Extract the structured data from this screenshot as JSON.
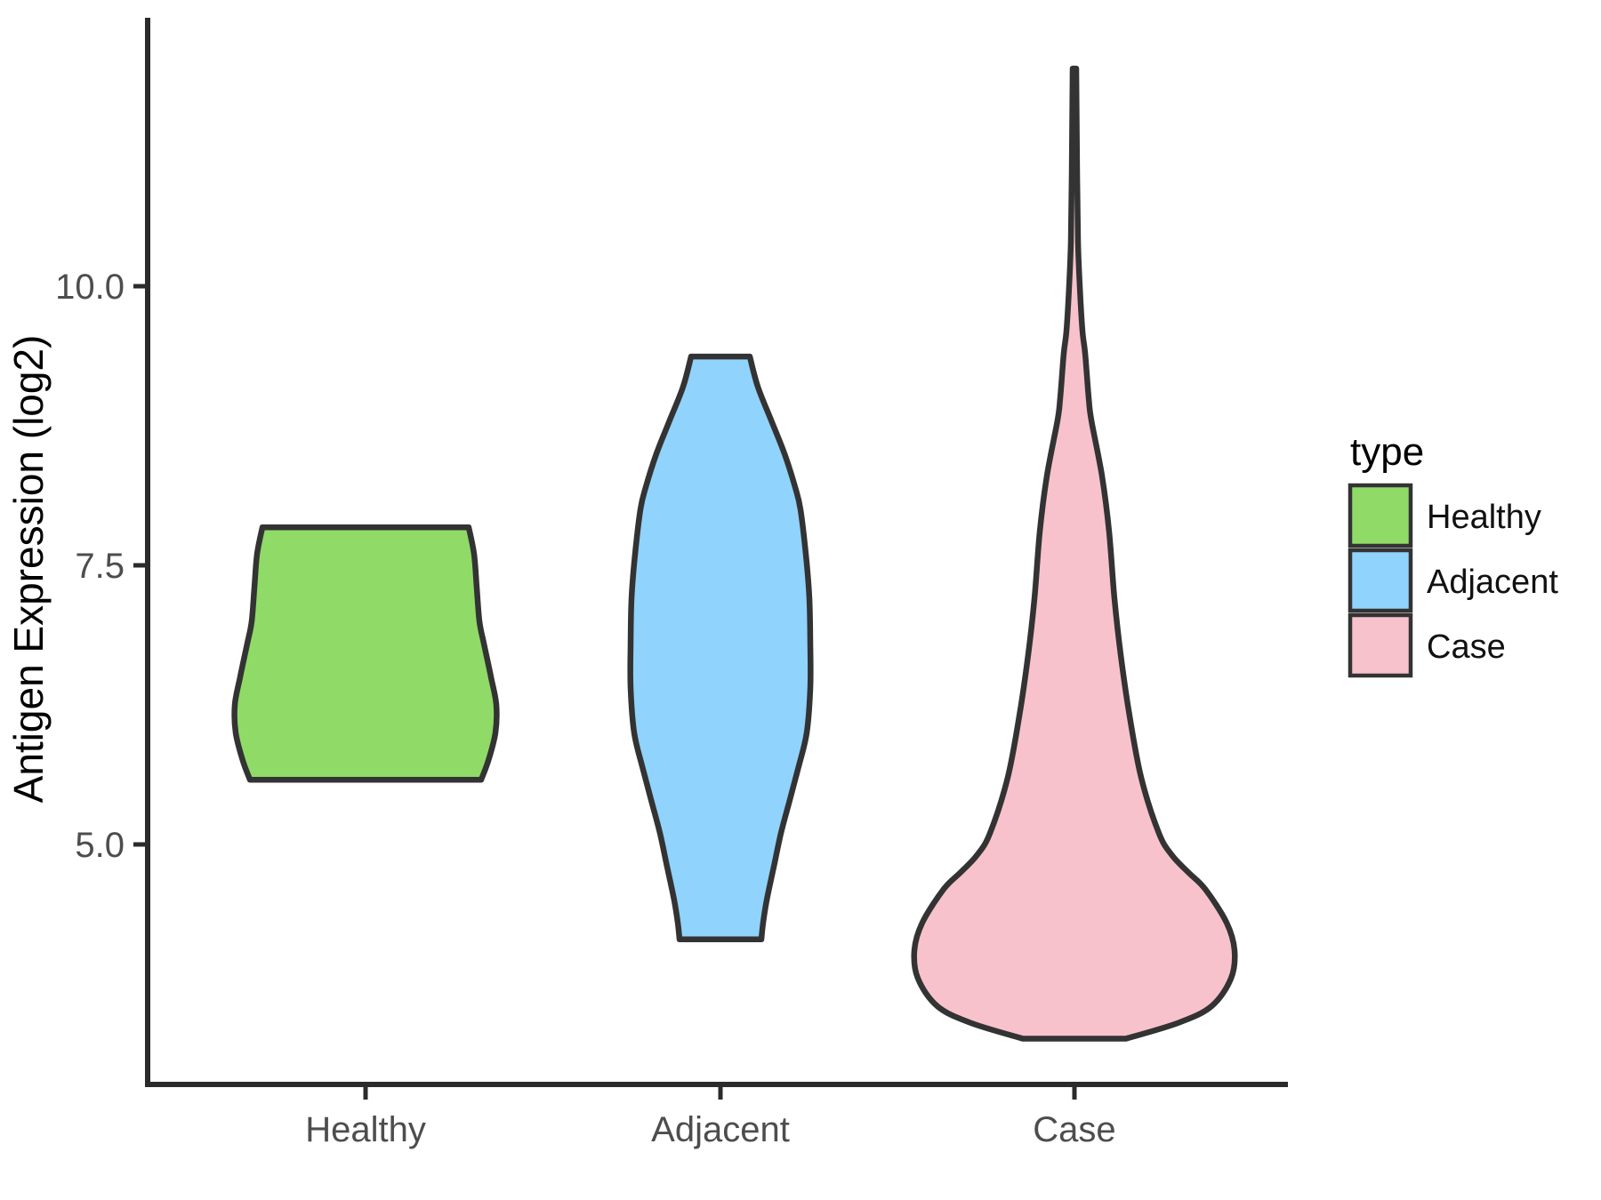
{
  "figure": {
    "background": "#ffffff",
    "outline_color": "#333333",
    "axis_color": "#2b2b2b",
    "tick_text_color": "#4d4d4d"
  },
  "y_axis": {
    "title": "Antigen Expression (log2)",
    "ticks": [
      {
        "label": "10.0",
        "value": 10.0
      },
      {
        "label": "7.5",
        "value": 7.5
      },
      {
        "label": "5.0",
        "value": 5.0
      }
    ]
  },
  "x_axis": {
    "categories": [
      "Healthy",
      "Adjacent",
      "Case"
    ]
  },
  "legend": {
    "title": "type",
    "items": [
      {
        "label": "Healthy",
        "color": "#90da68"
      },
      {
        "label": "Adjacent",
        "color": "#90d3fc"
      },
      {
        "label": "Case",
        "color": "#f8c2cc"
      }
    ]
  },
  "chart_data": {
    "type": "violin",
    "title": "",
    "xlabel": "",
    "ylabel": "Antigen Expression (log2)",
    "categories": [
      "Healthy",
      "Adjacent",
      "Case"
    ],
    "ylim": [
      2.85,
      12.45
    ],
    "yticks": [
      5.0,
      7.5,
      10.0
    ],
    "grid": "off",
    "legend_position": "right",
    "series": [
      {
        "name": "Healthy",
        "color": "#90da68",
        "value_range": [
          5.58,
          7.84
        ],
        "flat_top": true,
        "flat_bottom": true,
        "profile": [
          [
            7.84,
            116
          ],
          [
            7.6,
            122
          ],
          [
            7.3,
            125
          ],
          [
            7.0,
            128
          ],
          [
            6.8,
            133
          ],
          [
            6.5,
            141
          ],
          [
            6.25,
            147
          ],
          [
            6.0,
            146
          ],
          [
            5.75,
            138
          ],
          [
            5.58,
            130
          ]
        ]
      },
      {
        "name": "Adjacent",
        "color": "#90d3fc",
        "value_range": [
          4.15,
          9.37
        ],
        "flat_top": true,
        "flat_bottom": true,
        "profile": [
          [
            9.37,
            33
          ],
          [
            9.1,
            42
          ],
          [
            8.8,
            57
          ],
          [
            8.5,
            72
          ],
          [
            8.2,
            84
          ],
          [
            8.0,
            90
          ],
          [
            7.6,
            96
          ],
          [
            7.2,
            100
          ],
          [
            6.8,
            101
          ],
          [
            6.4,
            101
          ],
          [
            6.0,
            97
          ],
          [
            5.7,
            88
          ],
          [
            5.4,
            78
          ],
          [
            5.1,
            68
          ],
          [
            4.8,
            60
          ],
          [
            4.5,
            52
          ],
          [
            4.3,
            48
          ],
          [
            4.15,
            46
          ]
        ]
      },
      {
        "name": "Case",
        "color": "#f8c2cc",
        "value_range": [
          3.26,
          11.95
        ],
        "flat_top": false,
        "flat_bottom": true,
        "profile": [
          [
            11.95,
            2
          ],
          [
            11.0,
            3
          ],
          [
            10.4,
            4
          ],
          [
            10.0,
            6
          ],
          [
            9.6,
            9
          ],
          [
            9.4,
            12
          ],
          [
            9.0,
            16
          ],
          [
            8.8,
            19
          ],
          [
            8.3,
            31
          ],
          [
            7.8,
            39
          ],
          [
            7.2,
            45
          ],
          [
            6.7,
            52
          ],
          [
            6.2,
            61
          ],
          [
            5.6,
            75
          ],
          [
            5.1,
            95
          ],
          [
            4.9,
            110
          ],
          [
            4.75,
            128
          ],
          [
            4.6,
            147
          ],
          [
            4.3,
            171
          ],
          [
            4.05,
            180
          ],
          [
            3.8,
            176
          ],
          [
            3.55,
            154
          ],
          [
            3.4,
            116
          ],
          [
            3.26,
            58
          ]
        ]
      }
    ],
    "profile_note": "profile entries are [y_value, half_width_px_on_1800px_canvas]"
  }
}
